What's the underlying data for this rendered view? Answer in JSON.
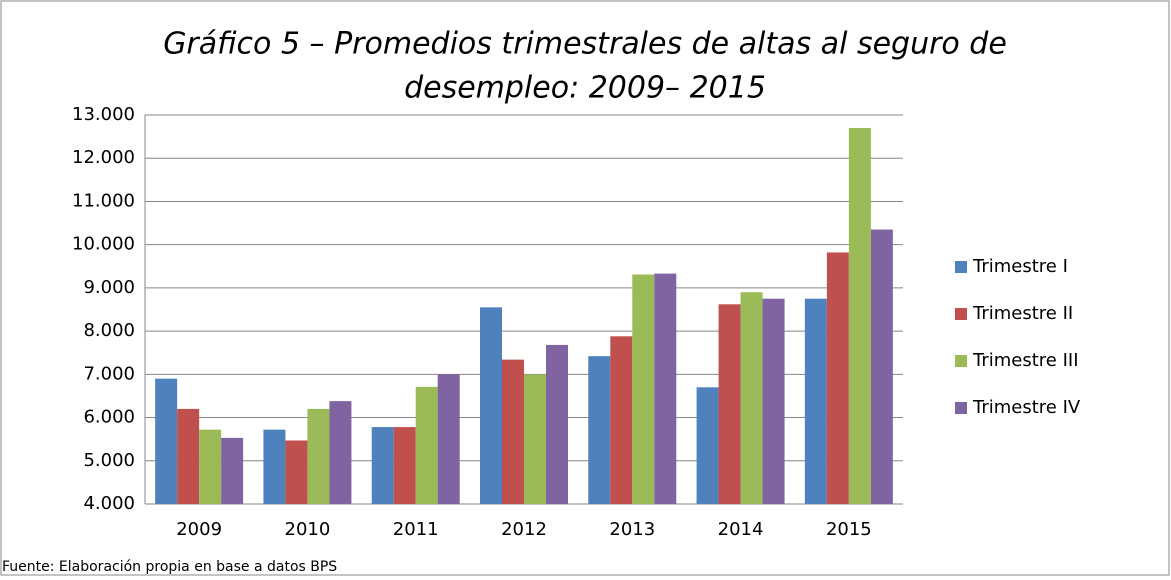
{
  "chart_data": {
    "type": "bar",
    "title": [
      "Gráfico 5 –  Promedios trimestrales de altas al seguro de",
      "desempleo: 2009– 2015"
    ],
    "categories": [
      "2009",
      "2010",
      "2011",
      "2012",
      "2013",
      "2014",
      "2015"
    ],
    "series": [
      {
        "name": "Trimestre I",
        "color": "#4f81bd",
        "values": [
          6900,
          5720,
          5780,
          8550,
          7420,
          6700,
          8750
        ]
      },
      {
        "name": "Trimestre II",
        "color": "#c0504d",
        "values": [
          6200,
          5470,
          5780,
          7340,
          7880,
          8620,
          9820
        ]
      },
      {
        "name": "Trimestre III",
        "color": "#9bbb59",
        "values": [
          5720,
          6200,
          6710,
          7000,
          9310,
          8900,
          12700
        ]
      },
      {
        "name": "Trimestre IV",
        "color": "#8064a2",
        "values": [
          5530,
          6380,
          7000,
          7680,
          9330,
          8750,
          10350
        ]
      }
    ],
    "ylim": [
      4000,
      13000
    ],
    "yticks": [
      {
        "value": 4000,
        "label": "4.000"
      },
      {
        "value": 5000,
        "label": "5.000"
      },
      {
        "value": 6000,
        "label": "6.000"
      },
      {
        "value": 7000,
        "label": "7.000"
      },
      {
        "value": 8000,
        "label": "8.000"
      },
      {
        "value": 9000,
        "label": "9.000"
      },
      {
        "value": 10000,
        "label": "10.000"
      },
      {
        "value": 11000,
        "label": "11.000"
      },
      {
        "value": 12000,
        "label": "12.000"
      },
      {
        "value": 13000,
        "label": "13.000"
      }
    ],
    "grid": true,
    "legend": "right",
    "source": "Fuente: Elaboración propia en base a datos BPS"
  }
}
